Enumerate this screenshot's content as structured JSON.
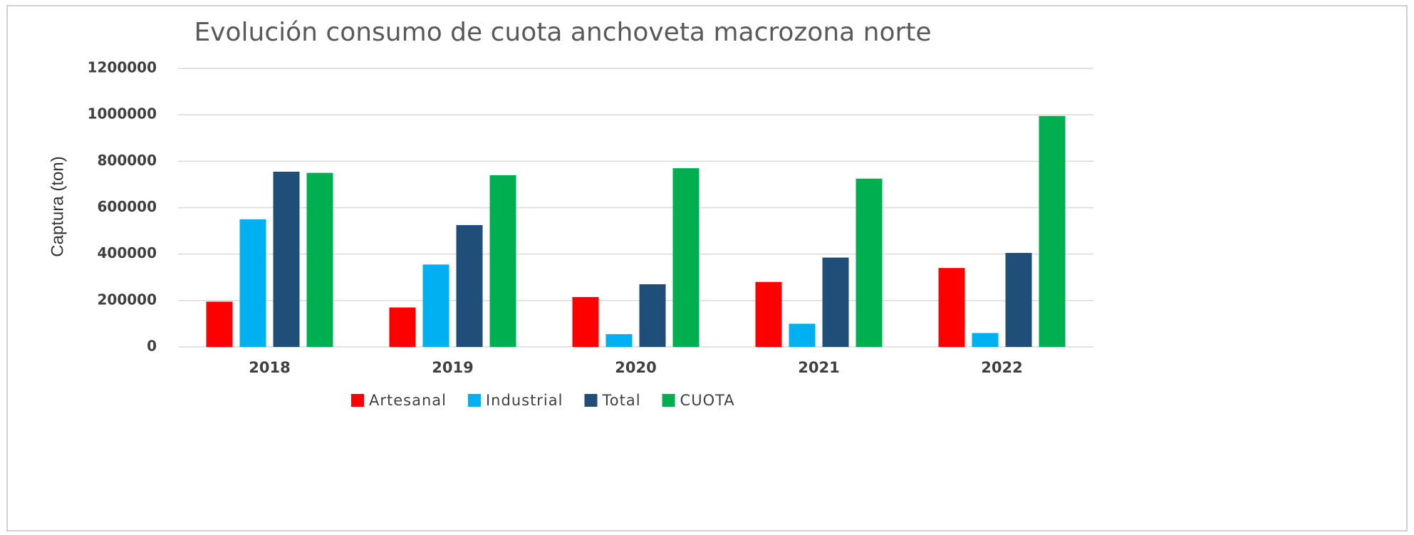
{
  "chart_data": {
    "type": "bar",
    "title": "Evolución consumo de cuota anchoveta macrozona norte",
    "y_label": "Captura (ton)",
    "categories": [
      "2018",
      "2019",
      "2020",
      "2021",
      "2022"
    ],
    "series": [
      {
        "name": "Artesanal",
        "color": "#ff0000",
        "values": [
          195000,
          170000,
          215000,
          280000,
          340000
        ]
      },
      {
        "name": "Industrial",
        "color": "#00b0f0",
        "values": [
          550000,
          355000,
          55000,
          100000,
          60000
        ]
      },
      {
        "name": "Total",
        "color": "#1f4e79",
        "values": [
          755000,
          525000,
          270000,
          385000,
          405000
        ]
      },
      {
        "name": "CUOTA",
        "color": "#00b050",
        "values": [
          750000,
          740000,
          770000,
          725000,
          995000
        ]
      }
    ],
    "ylim": [
      0,
      1200000
    ],
    "yticks": [
      0,
      200000,
      400000,
      600000,
      800000,
      1000000,
      1200000
    ],
    "grid": true,
    "legend": "bottom"
  }
}
